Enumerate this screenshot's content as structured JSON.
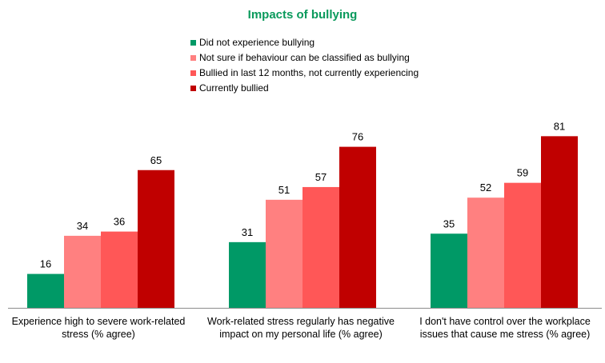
{
  "chart_data": {
    "type": "bar",
    "title": "Impacts of bullying",
    "categories": [
      "Experience high to severe work-related stress (% agree)",
      "Work-related stress regularly has negative impact on my personal life (% agree)",
      "I don't have control over the workplace issues that cause me stress (% agree)"
    ],
    "series": [
      {
        "name": "Did not experience bullying",
        "values": [
          16,
          31,
          35
        ],
        "color": "#009966"
      },
      {
        "name": "Not sure if behaviour can be classified as bullying",
        "values": [
          34,
          51,
          52
        ],
        "color": "#ff8080"
      },
      {
        "name": "Bullied in last 12 months, not currently experiencing",
        "values": [
          36,
          57,
          59
        ],
        "color": "#ff5757"
      },
      {
        "name": "Currently bullied",
        "values": [
          65,
          76,
          81
        ],
        "color": "#c00000"
      }
    ],
    "ylim": [
      0,
      100
    ],
    "legend_position": "top",
    "grid": false,
    "data_labels": true
  }
}
